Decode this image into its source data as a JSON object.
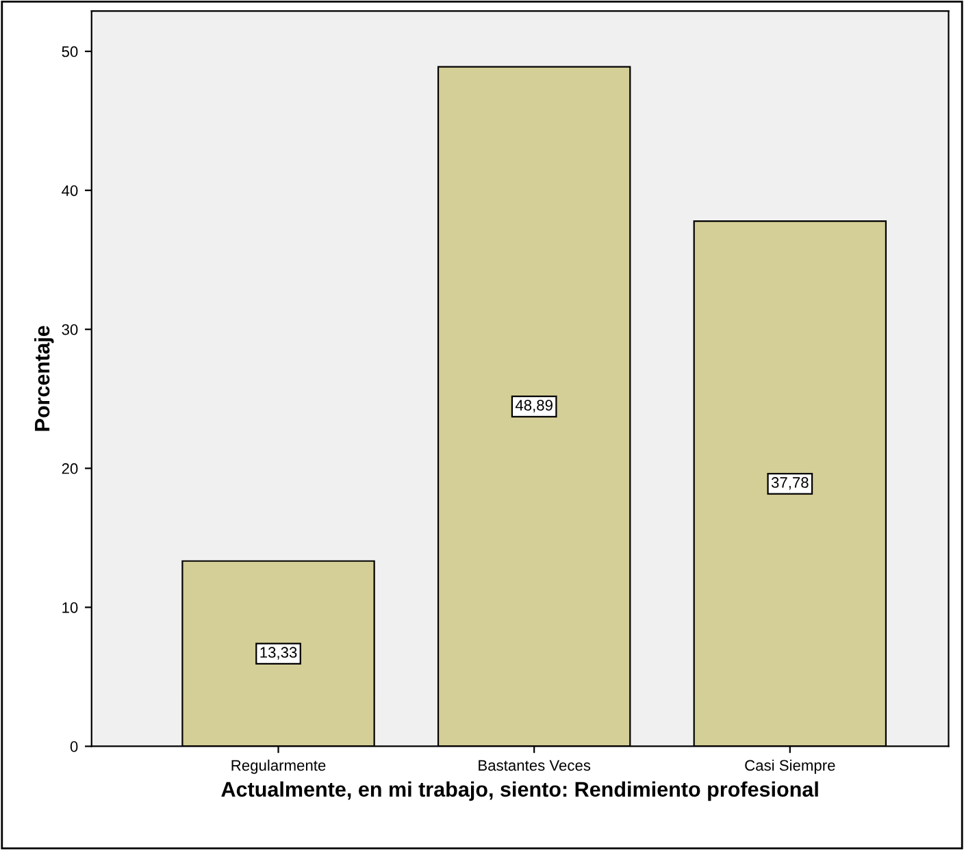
{
  "chart_data": {
    "type": "bar",
    "categories": [
      "Regularmente",
      "Bastantes Veces",
      "Casi Siempre"
    ],
    "values": [
      13.33,
      48.89,
      37.78
    ],
    "value_labels": [
      "13,33",
      "48,89",
      "37,78"
    ],
    "color": "#d4ce97",
    "xlabel": "Actualmente, en mi trabajo, siento: Rendimiento profesional",
    "ylabel": "Porcentaje",
    "ylim": [
      0,
      52.9
    ],
    "yticks": [
      0,
      10,
      20,
      30,
      40,
      50
    ],
    "grid": false,
    "legend": false
  }
}
